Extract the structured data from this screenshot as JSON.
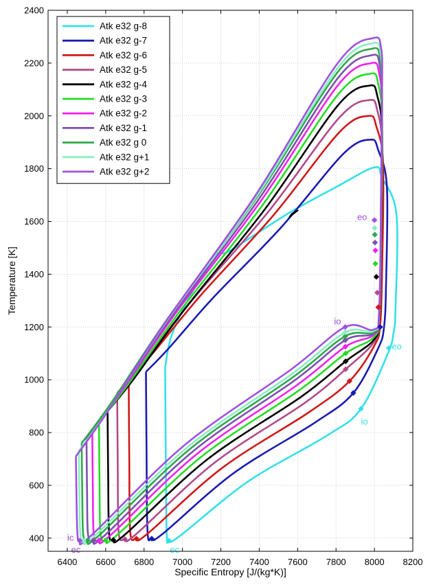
{
  "chart_data": {
    "type": "line",
    "title": "",
    "xlabel": "Specific Entropy [J/(kg*K)]",
    "ylabel": "Temperature [K]",
    "xlim": [
      6300,
      8200
    ],
    "ylim": [
      350,
      2400
    ],
    "xticks": [
      "6400",
      "6600",
      "6800",
      "7000",
      "7200",
      "7400",
      "7600",
      "7800",
      "8000",
      "8200"
    ],
    "yticks": [
      "400",
      "600",
      "800",
      "1000",
      "1200",
      "1400",
      "1600",
      "1800",
      "2000",
      "2200",
      "2400"
    ],
    "grid": true,
    "legend_position": "top-left",
    "series": [
      {
        "name": "Atk e32 g-8",
        "color": "#33e0e8",
        "s_min": 6910,
        "t_start": 1050,
        "t_bottom": 390,
        "s_ec": 6930,
        "s_right": 8110,
        "t_low_right": 1100,
        "s_io": 7930,
        "t_io": 890,
        "t_peak": 1805,
        "s_peak": 8000,
        "t_eo": 1120,
        "s_eo": 8075
      },
      {
        "name": "Atk e32 g-7",
        "color": "#1a1ab0",
        "s_min": 6810,
        "t_start": 1030,
        "t_bottom": 398,
        "s_ec": 6840,
        "s_right": 8060,
        "t_low_right": 1120,
        "s_io": 7890,
        "t_io": 950,
        "t_peak": 1910,
        "s_peak": 7980,
        "t_eo": 1200,
        "s_eo": 8030
      },
      {
        "name": "Atk e32 g-6",
        "color": "#d01818",
        "s_min": 6720,
        "t_start": 1000,
        "t_bottom": 398,
        "s_ec": 6760,
        "s_right": 8040,
        "t_low_right": 1130,
        "s_io": 7870,
        "t_io": 995,
        "t_peak": 2000,
        "s_peak": 7970,
        "t_eo": 1275,
        "s_eo": 8020
      },
      {
        "name": "Atk e32 g-5",
        "color": "#b04a8a",
        "s_min": 6660,
        "t_start": 950,
        "t_bottom": 396,
        "s_ec": 6700,
        "s_right": 8035,
        "t_low_right": 1140,
        "s_io": 7850,
        "t_io": 1040,
        "t_peak": 2060,
        "s_peak": 7975,
        "t_eo": 1330,
        "s_eo": 8015
      },
      {
        "name": "Atk e32 g-4",
        "color": "#000000",
        "s_min": 6610,
        "t_start": 880,
        "t_bottom": 393,
        "s_ec": 6640,
        "s_right": 8035,
        "t_low_right": 1150,
        "s_io": 7850,
        "t_io": 1070,
        "t_peak": 2115,
        "s_peak": 7975,
        "t_eo": 1390,
        "s_eo": 8010
      },
      {
        "name": "Atk e32 g-3",
        "color": "#22dd22",
        "s_min": 6565,
        "t_start": 840,
        "t_bottom": 392,
        "s_ec": 6600,
        "s_right": 8035,
        "t_low_right": 1160,
        "s_io": 7850,
        "t_io": 1100,
        "t_peak": 2160,
        "s_peak": 7980,
        "t_eo": 1440,
        "s_eo": 8005
      },
      {
        "name": "Atk e32 g-2",
        "color": "#ee22ee",
        "s_min": 6530,
        "t_start": 810,
        "t_bottom": 391,
        "s_ec": 6565,
        "s_right": 8035,
        "t_low_right": 1170,
        "s_io": 7848,
        "t_io": 1125,
        "t_peak": 2200,
        "s_peak": 7985,
        "t_eo": 1490,
        "s_eo": 8005
      },
      {
        "name": "Atk e32 g-1",
        "color": "#7c4fb0",
        "s_min": 6500,
        "t_start": 780,
        "t_bottom": 390,
        "s_ec": 6535,
        "s_right": 8035,
        "t_low_right": 1175,
        "s_io": 7848,
        "t_io": 1150,
        "t_peak": 2230,
        "s_peak": 7988,
        "t_eo": 1520,
        "s_eo": 8003
      },
      {
        "name": "Atk e32 g 0",
        "color": "#2ea84a",
        "s_min": 6475,
        "t_start": 760,
        "t_bottom": 390,
        "s_ec": 6505,
        "s_right": 8035,
        "t_low_right": 1180,
        "s_io": 7848,
        "t_io": 1165,
        "t_peak": 2255,
        "s_peak": 7990,
        "t_eo": 1550,
        "s_eo": 8002
      },
      {
        "name": "Atk e32 g+1",
        "color": "#88f0c0",
        "s_min": 6460,
        "t_start": 730,
        "t_bottom": 390,
        "s_ec": 6485,
        "s_right": 8035,
        "t_low_right": 1185,
        "s_io": 7848,
        "t_io": 1180,
        "t_peak": 2275,
        "s_peak": 7993,
        "t_eo": 1575,
        "s_eo": 8001
      },
      {
        "name": "Atk e32 g+2",
        "color": "#a050e0",
        "s_min": 6445,
        "t_start": 710,
        "t_bottom": 390,
        "s_ec": 6465,
        "s_right": 8035,
        "t_low_right": 1190,
        "s_io": 7848,
        "t_io": 1200,
        "t_peak": 2295,
        "s_peak": 7995,
        "t_eo": 1605,
        "s_eo": 8000
      }
    ],
    "annotations": [
      {
        "text": "eo",
        "color": "#a050e0",
        "x": 7910,
        "y": 1605
      },
      {
        "text": "io",
        "color": "#a050e0",
        "x": 7790,
        "y": 1210
      },
      {
        "text": "eo",
        "color": "#33e0e8",
        "x": 8090,
        "y": 1115
      },
      {
        "text": "io",
        "color": "#33e0e8",
        "x": 7930,
        "y": 830
      },
      {
        "text": "ic",
        "color": "#a050e0",
        "x": 6400,
        "y": 390
      },
      {
        "text": "ec",
        "color": "#a050e0",
        "x": 6420,
        "y": 345
      },
      {
        "text": "ec",
        "color": "#33e0e8",
        "x": 6935,
        "y": 345
      }
    ]
  }
}
